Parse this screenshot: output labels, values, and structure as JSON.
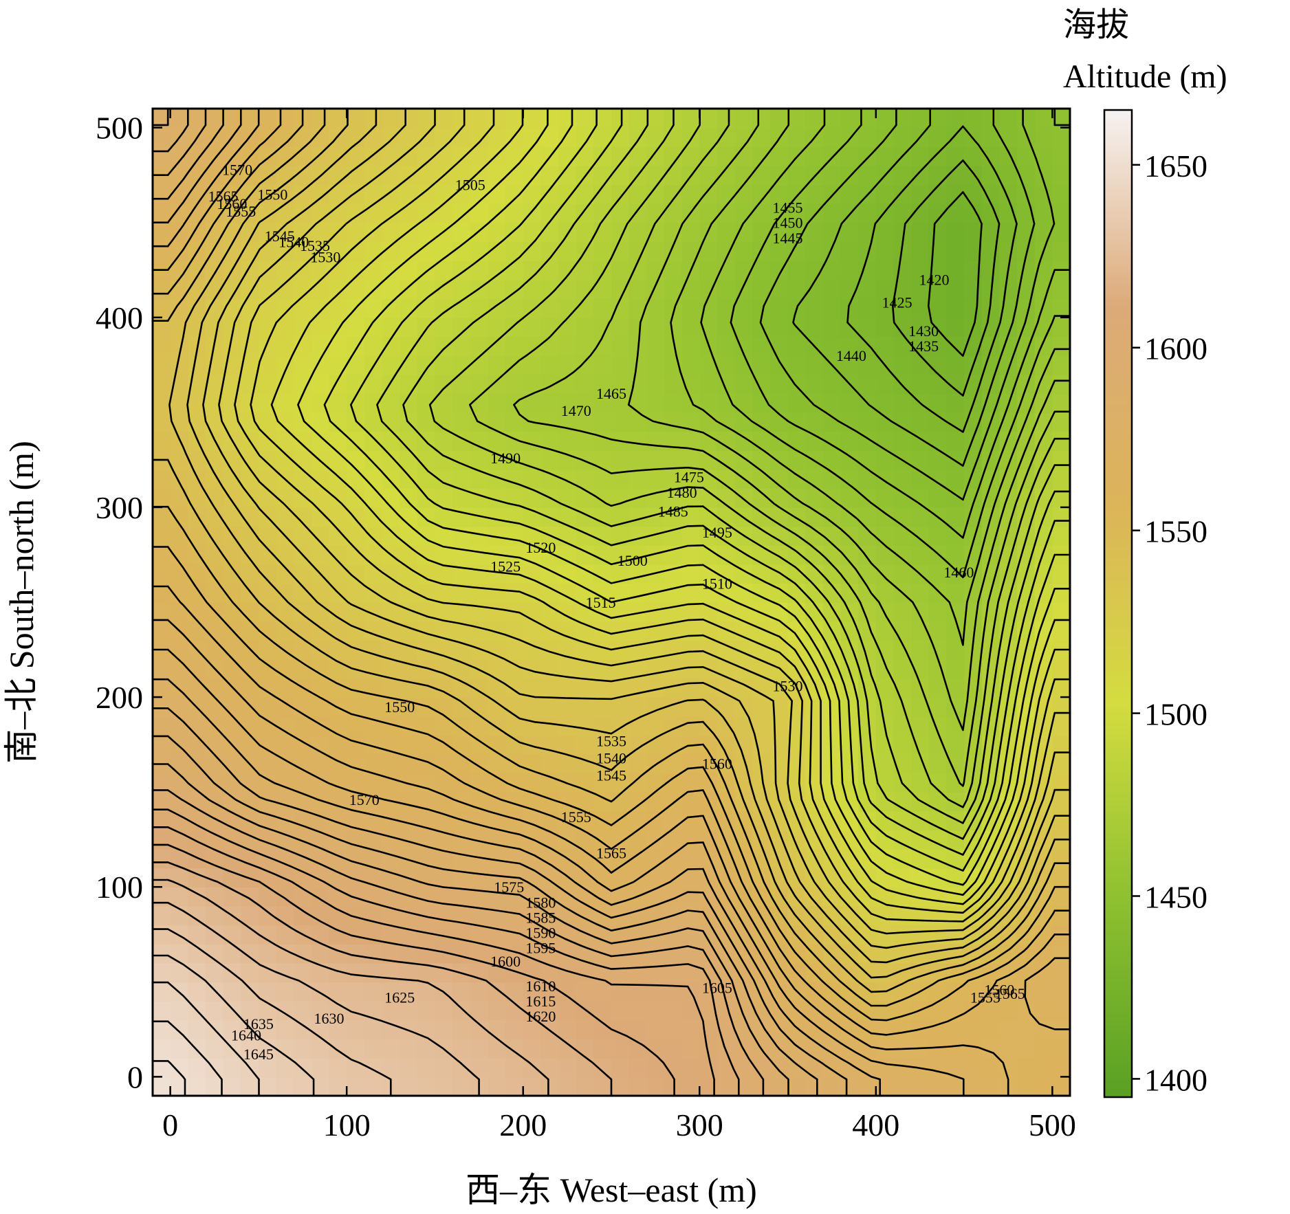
{
  "chart_data": {
    "type": "heatmap",
    "subtype": "filled contour map with labeled contour lines",
    "xlabel": "西–东 West–east (m)",
    "ylabel": "南–北 South–north (m)",
    "colorbar_title_zh": "海拔",
    "colorbar_title_en": "Altitude (m)",
    "xlim": [
      -10,
      510
    ],
    "ylim": [
      -10,
      510
    ],
    "xticks": [
      0,
      100,
      200,
      300,
      400,
      500
    ],
    "yticks": [
      0,
      100,
      200,
      300,
      400,
      500
    ],
    "clim": [
      1395,
      1665
    ],
    "colorbar_ticks": [
      1400,
      1450,
      1500,
      1550,
      1600,
      1650
    ],
    "colormap": [
      "#5aa024",
      "#8ec030",
      "#d4dc40",
      "#dcb45a",
      "#dcaa78",
      "#f6f2f2"
    ],
    "contour_interval": 5,
    "grid": false,
    "elevation_grid": {
      "x": [
        0,
        50,
        100,
        150,
        200,
        250,
        300,
        350,
        400,
        450,
        500
      ],
      "y": [
        0,
        50,
        100,
        150,
        200,
        250,
        300,
        350,
        400,
        450,
        500
      ],
      "z": [
        [
          1652,
          1640,
          1632,
          1628,
          1622,
          1615,
          1608,
          1590,
          1575,
          1570,
          1560
        ],
        [
          1640,
          1628,
          1622,
          1620,
          1612,
          1605,
          1605,
          1565,
          1540,
          1555,
          1570
        ],
        [
          1622,
          1612,
          1598,
          1590,
          1588,
          1568,
          1580,
          1540,
          1510,
          1500,
          1550
        ],
        [
          1595,
          1578,
          1570,
          1565,
          1555,
          1548,
          1562,
          1525,
          1485,
          1470,
          1530
        ],
        [
          1578,
          1562,
          1552,
          1548,
          1535,
          1535,
          1540,
          1528,
          1480,
          1462,
          1518
        ],
        [
          1562,
          1545,
          1530,
          1520,
          1518,
          1505,
          1510,
          1498,
          1470,
          1458,
          1502
        ],
        [
          1550,
          1530,
          1515,
          1495,
          1490,
          1480,
          1486,
          1468,
          1455,
          1446,
          1488
        ],
        [
          1540,
          1512,
          1495,
          1478,
          1468,
          1466,
          1460,
          1448,
          1440,
          1432,
          1470
        ],
        [
          1545,
          1518,
          1505,
          1490,
          1480,
          1470,
          1455,
          1440,
          1432,
          1420,
          1455
        ],
        [
          1565,
          1535,
          1520,
          1508,
          1495,
          1478,
          1462,
          1448,
          1435,
          1420,
          1445
        ],
        [
          1585,
          1560,
          1540,
          1525,
          1510,
          1492,
          1475,
          1460,
          1448,
          1435,
          1450
        ]
      ]
    },
    "contour_labels": [
      {
        "text": "1505",
        "x": 170,
        "y": 470
      },
      {
        "text": "1455",
        "x": 350,
        "y": 458
      },
      {
        "text": "1450",
        "x": 350,
        "y": 450
      },
      {
        "text": "1445",
        "x": 350,
        "y": 442
      },
      {
        "text": "1420",
        "x": 433,
        "y": 420
      },
      {
        "text": "1425",
        "x": 412,
        "y": 408
      },
      {
        "text": "1430",
        "x": 427,
        "y": 393
      },
      {
        "text": "1435",
        "x": 427,
        "y": 385
      },
      {
        "text": "1440",
        "x": 386,
        "y": 380
      },
      {
        "text": "1465",
        "x": 250,
        "y": 360
      },
      {
        "text": "1470",
        "x": 230,
        "y": 351
      },
      {
        "text": "1490",
        "x": 190,
        "y": 326
      },
      {
        "text": "1475",
        "x": 294,
        "y": 316
      },
      {
        "text": "1480",
        "x": 290,
        "y": 308
      },
      {
        "text": "1485",
        "x": 285,
        "y": 298
      },
      {
        "text": "1495",
        "x": 310,
        "y": 287
      },
      {
        "text": "1520",
        "x": 210,
        "y": 279
      },
      {
        "text": "1525",
        "x": 190,
        "y": 269
      },
      {
        "text": "1500",
        "x": 262,
        "y": 272
      },
      {
        "text": "1510",
        "x": 310,
        "y": 260
      },
      {
        "text": "1515",
        "x": 244,
        "y": 250
      },
      {
        "text": "1460",
        "x": 447,
        "y": 266
      },
      {
        "text": "1530",
        "x": 350,
        "y": 206
      },
      {
        "text": "1550",
        "x": 130,
        "y": 195
      },
      {
        "text": "1535",
        "x": 250,
        "y": 177
      },
      {
        "text": "1540",
        "x": 250,
        "y": 168
      },
      {
        "text": "1545",
        "x": 250,
        "y": 159
      },
      {
        "text": "1560",
        "x": 310,
        "y": 165
      },
      {
        "text": "1570",
        "x": 110,
        "y": 146
      },
      {
        "text": "1555",
        "x": 230,
        "y": 137
      },
      {
        "text": "1565",
        "x": 250,
        "y": 118
      },
      {
        "text": "1575",
        "x": 192,
        "y": 100
      },
      {
        "text": "1580",
        "x": 210,
        "y": 92
      },
      {
        "text": "1585",
        "x": 210,
        "y": 84
      },
      {
        "text": "1590",
        "x": 210,
        "y": 76
      },
      {
        "text": "1595",
        "x": 210,
        "y": 68
      },
      {
        "text": "1600",
        "x": 190,
        "y": 61
      },
      {
        "text": "1610",
        "x": 210,
        "y": 48
      },
      {
        "text": "1615",
        "x": 210,
        "y": 40
      },
      {
        "text": "1620",
        "x": 210,
        "y": 32
      },
      {
        "text": "1605",
        "x": 310,
        "y": 47
      },
      {
        "text": "1625",
        "x": 130,
        "y": 42
      },
      {
        "text": "1630",
        "x": 90,
        "y": 31
      },
      {
        "text": "1635",
        "x": 50,
        "y": 28
      },
      {
        "text": "1640",
        "x": 43,
        "y": 22
      },
      {
        "text": "1645",
        "x": 50,
        "y": 12
      },
      {
        "text": "1570",
        "x": 38,
        "y": 478
      },
      {
        "text": "1565",
        "x": 30,
        "y": 464
      },
      {
        "text": "1560",
        "x": 35,
        "y": 460
      },
      {
        "text": "1555",
        "x": 40,
        "y": 456
      },
      {
        "text": "1550",
        "x": 58,
        "y": 465
      },
      {
        "text": "1545",
        "x": 62,
        "y": 443
      },
      {
        "text": "1540",
        "x": 70,
        "y": 440
      },
      {
        "text": "1535",
        "x": 82,
        "y": 438
      },
      {
        "text": "1530",
        "x": 88,
        "y": 432
      },
      {
        "text": "1555",
        "x": 462,
        "y": 42
      },
      {
        "text": "1560",
        "x": 470,
        "y": 46
      },
      {
        "text": "1565",
        "x": 476,
        "y": 44
      }
    ]
  }
}
